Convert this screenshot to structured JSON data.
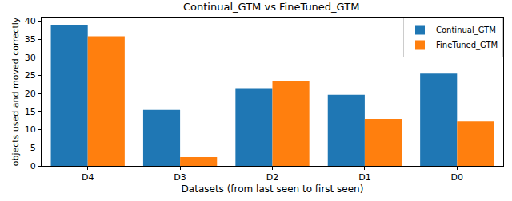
{
  "chart_data": {
    "type": "bar",
    "title": "Continual_GTM vs FineTuned_GTM",
    "x_label": "Datasets (from last seen to first seen)",
    "y_label": "objects used and moved correctly",
    "categories": [
      "D4",
      "D3",
      "D2",
      "D1",
      "D0"
    ],
    "series": [
      {
        "name": "Continual_GTM",
        "color": "#1f77b4",
        "values": [
          39.0,
          15.5,
          21.5,
          19.7,
          25.5
        ]
      },
      {
        "name": "FineTuned_GTM",
        "color": "#ff7f0e",
        "values": [
          35.8,
          2.4,
          23.4,
          13.0,
          12.3
        ]
      }
    ],
    "ylim": [
      0,
      41
    ],
    "yticks": [
      0,
      5,
      10,
      15,
      20,
      25,
      30,
      35,
      40
    ],
    "grid": false,
    "legend": "upper right"
  }
}
